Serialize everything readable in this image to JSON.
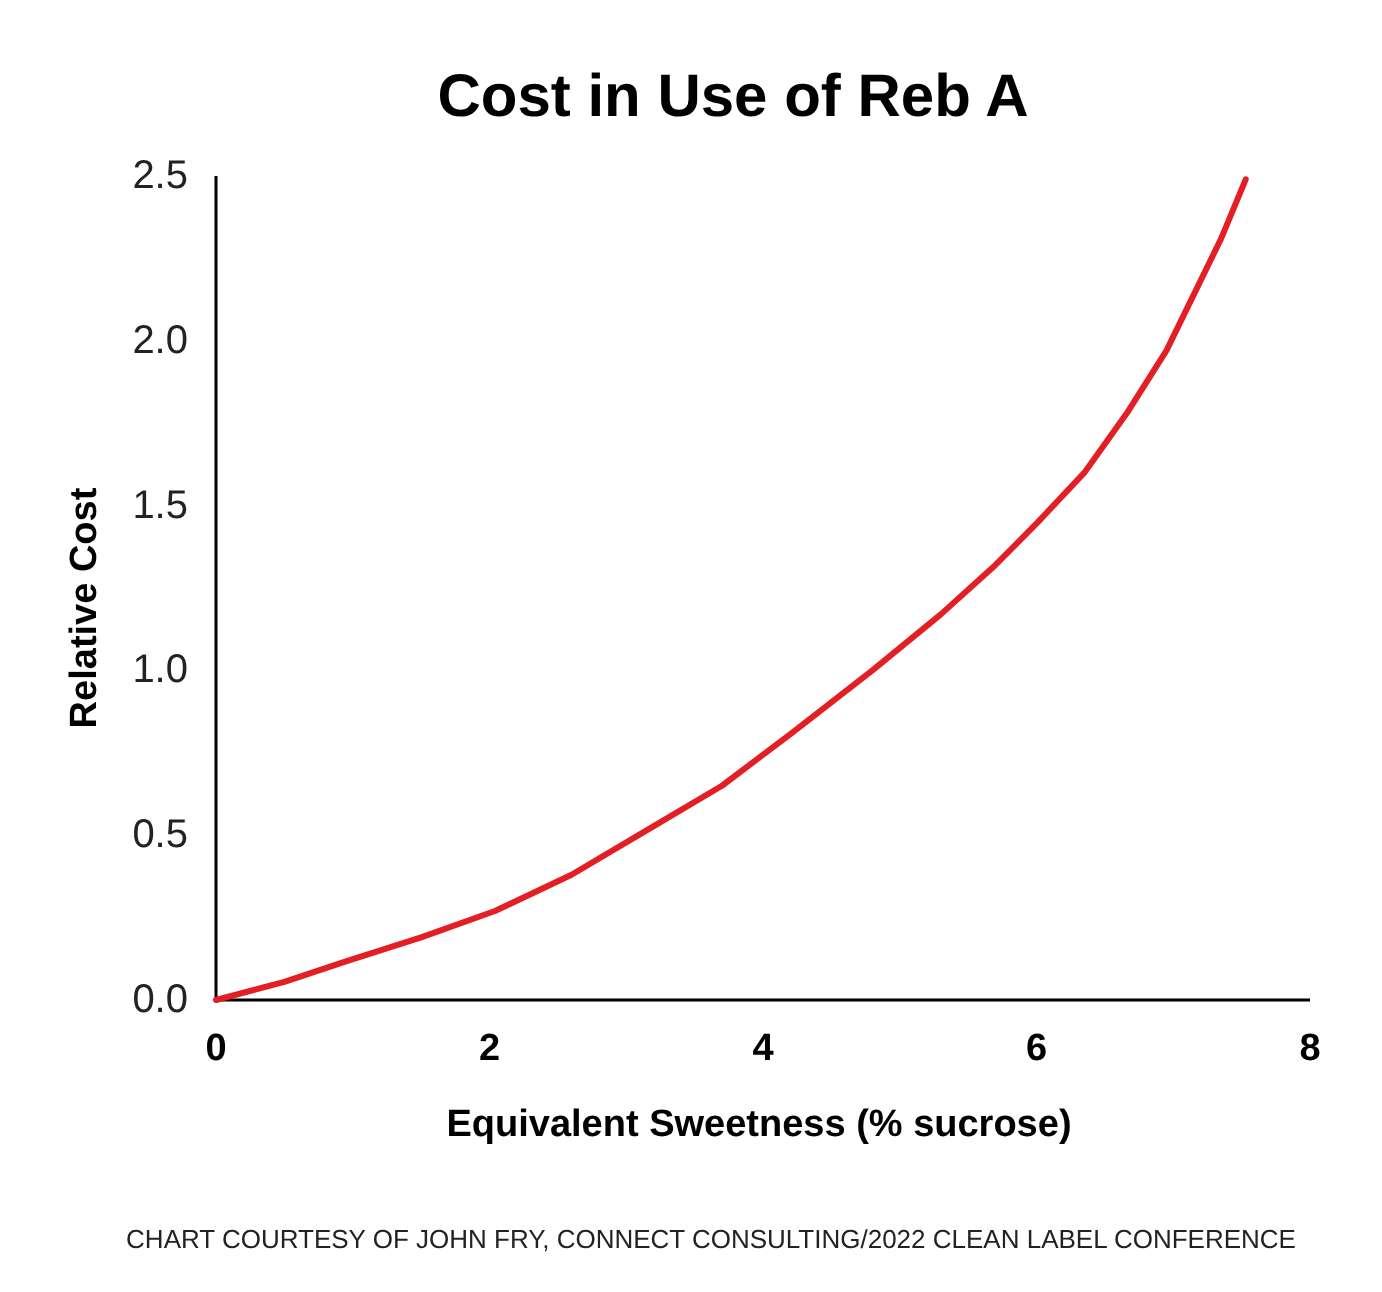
{
  "chart_data": {
    "type": "line",
    "title": "Cost in Use of Reb A",
    "xlabel": "Equivalent Sweetness (% sucrose)",
    "ylabel": "Relative Cost",
    "annotations": [
      "CHART COURTESY OF JOHN FRY, CONNECT CONSULTING/2022 CLEAN LABEL CONFERENCE"
    ],
    "series": [
      {
        "color": "#e31e24",
        "x": [
          0,
          0.5,
          0.95,
          1.5,
          2.04,
          2.6,
          3.13,
          3.7,
          4.21,
          4.8,
          5.3,
          5.7,
          6.01,
          6.35,
          6.66,
          6.95,
          7.15,
          7.35,
          7.53
        ],
        "values": [
          0,
          0.055,
          0.117,
          0.19,
          0.27,
          0.38,
          0.51,
          0.65,
          0.81,
          1.0,
          1.17,
          1.32,
          1.45,
          1.6,
          1.78,
          1.97,
          2.14,
          2.31,
          2.49
        ]
      }
    ],
    "xlim": [
      0,
      8
    ],
    "xticks": [
      0,
      2,
      4,
      6,
      8
    ],
    "ylim": [
      0,
      2.5
    ],
    "yticks": [
      {
        "value": 0,
        "label": "0.0"
      },
      {
        "value": 0.5,
        "label": "0.5"
      },
      {
        "value": 1,
        "label": "1.0"
      },
      {
        "value": 1.5,
        "label": "1.5"
      },
      {
        "value": 2,
        "label": "2.0"
      },
      {
        "value": 2.5,
        "label": "2.5"
      }
    ],
    "grid": false,
    "marker": "none",
    "line_style": "solid"
  }
}
